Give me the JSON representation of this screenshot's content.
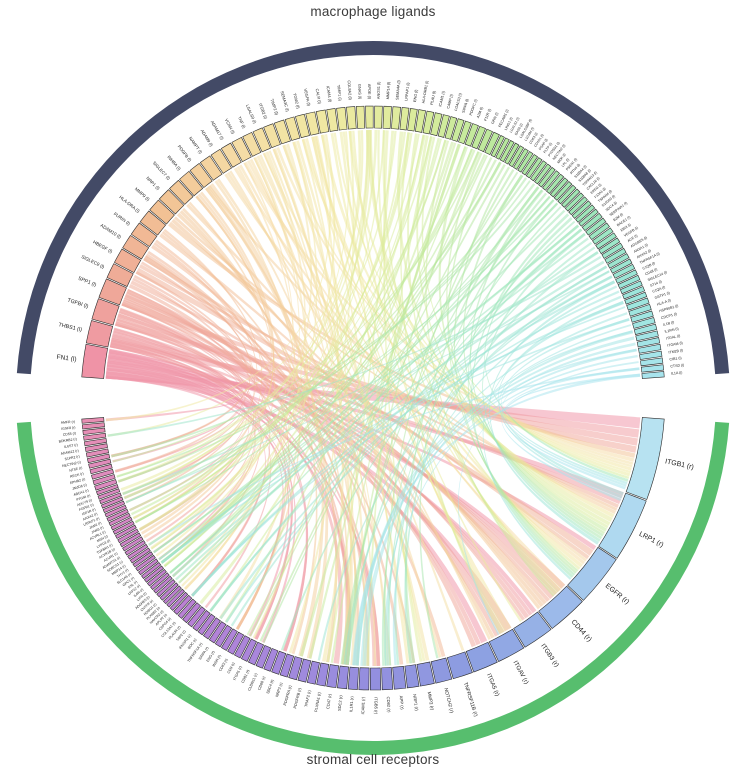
{
  "titles": {
    "top": "macrophage ligands",
    "bottom": "stromal cell receptors"
  },
  "chart_data": {
    "type": "chord",
    "layout_hint": "circos chord diagram; ligand sectors on upper semicircle, receptor sectors on lower semicircle; outer group bands; ribbons colored by source ligand",
    "groups": [
      {
        "name": "macrophage ligands",
        "band_color": "#434A66",
        "suffix": "(l)"
      },
      {
        "name": "stromal cell receptors",
        "band_color": "#57BE6E",
        "suffix": "(r)"
      }
    ],
    "ligand_labels": [
      "FN1 (l)",
      "THBS1 (l)",
      "TGFBI (l)",
      "SPP1 (l)",
      "SIGLEC9 (l)",
      "HBEGF (l)",
      "ADAM10 (l)",
      "FURIN (l)",
      "HLA-DRA (l)",
      "MMP9 (l)",
      "NRP1 (l)",
      "SIGLEC7 (l)",
      "INHBA (l)",
      "PDGFB (l)",
      "NAMPT (l)",
      "ADAM9 (l)",
      "ADAM17 (l)",
      "VCAN (l)",
      "TNF (l)",
      "LGALS9 (l)",
      "ITGB2 (l)",
      "TIMP2 (l)",
      "SEMA3C (l)",
      "TGM2 (l)",
      "VEGFA (l)",
      "CALR (l)",
      "ICAM4 (l)",
      "TIMP1 (l)",
      "COL8A2 (l)",
      "GNAS (l)",
      "APOE (l)",
      "ANOS1 (l)",
      "MMP14 (l)",
      "SEMA4A (l)",
      "LRPAP1 (l)",
      "ENG (l)",
      "HLA-DRB1 (l)",
      "PLAU (l)",
      "ICAM1 (l)",
      "CAMP (l)",
      "LGALS3 (l)",
      "SIRPA (l)",
      "PDGFC (l)",
      "A2M (l)",
      "F11R (l)",
      "GRN (l)",
      "PECAM1 (l)",
      "LRIG1 (l)",
      "LGALS1 (l)",
      "GAS6 (l)",
      "LGALS3BP (l)",
      "L1CAM (l)",
      "CD63 (l)",
      "CD151 (l)",
      "PSAP (l)",
      "PLTP (l)",
      "PTDSS1 (l)",
      "NECTIN2 (l)",
      "MDK (l)",
      "LPL (l)",
      "PSEN1 (l)",
      "RTN4 (l)",
      "S100A4 (l)",
      "S100A8 (l)",
      "TSPAN13 (l)",
      "CXCL16 (l)",
      "EREG (l)",
      "F13A1 (l)",
      "TSPAN4 (l)",
      "S100A9 (l)",
      "SDC4 (l)",
      "SERPINA1 (l)",
      "B2M (l)",
      "BACE1 (l)",
      "EBI3 (l)",
      "VEGFB (l)",
      "ACE (l)",
      "ADGRE5 (l)",
      "ANXA1 (l)",
      "ANXA2 (l)",
      "TNFRSF1A (l)",
      "C1QB (l)",
      "CD48 (l)",
      "SIGLEC14 (l)",
      "ST14 (l)",
      "C1QA (l)",
      "GSTP1 (l)",
      "HLA-A (l)",
      "HSP90B1 (l)",
      "CDCP1 (l)",
      "IL1B (l)",
      "IL1RN (l)",
      "ITGAL (l)",
      "ITGAM (l)",
      "ITM2B (l)",
      "CIB1 (l)",
      "CTSD (l)",
      "IL1A (l)"
    ],
    "ligand_weights": [
      4.5,
      3.2,
      3.0,
      2.8,
      2.2,
      2.2,
      2.1,
      2.0,
      2.0,
      1.9,
      1.9,
      1.8,
      1.8,
      1.7,
      1.7,
      1.6,
      1.6,
      1.6,
      1.5,
      1.5,
      1.5,
      1.5,
      1.4,
      1.4,
      1.4,
      1.4,
      1.3,
      1.3,
      1.3,
      1.2,
      1.2,
      1.2,
      1.2,
      1.2,
      1.1,
      1.1,
      1.1,
      1.1,
      1.1,
      1.0,
      1.0,
      1.0,
      1.0,
      1.0,
      1.0,
      1.0,
      1.0,
      0.72,
      0.72,
      0.72,
      0.72,
      0.72,
      0.72,
      0.72,
      0.72,
      0.72,
      0.72,
      0.72,
      0.72,
      0.72,
      0.72,
      0.72,
      0.72,
      0.72,
      0.72,
      0.72,
      0.72,
      0.72,
      0.72,
      0.72,
      0.8,
      0.8,
      0.8,
      0.8,
      0.8,
      0.8,
      0.8,
      0.8,
      0.8,
      0.8,
      0.8,
      0.8,
      0.8,
      0.8,
      0.8,
      0.8,
      0.9,
      0.9,
      0.9,
      0.9,
      0.9,
      0.9,
      0.9,
      0.9,
      0.9,
      0.9,
      0.9,
      0.9
    ],
    "receptor_labels": [
      "ITGB1 (r)",
      "LRP1 (r)",
      "EGFR (r)",
      "CD44 (r)",
      "ITGB3 (r)",
      "ITGAV (r)",
      "ITGA5 (r)",
      "TNFRSF11B (r)",
      "NOTCH2 (r)",
      "MMP2 (r)",
      "NRP1 (r)",
      "APP (r)",
      "CD82 (r)",
      "ITGB5 (r)",
      "ICAM1 (r)",
      "IL1R1 (r)",
      "SDC2 (r)",
      "CD47 (r)",
      "PLXNA1 (r)",
      "TRAF2 (r)",
      "PDGFRB (r)",
      "PDGFRA (r)",
      "NRP2 (r)",
      "SDC4 (r)",
      "CD68 (r)",
      "CLDN11 (r)",
      "CD81 (r)",
      "ITGA1 (r)",
      "CD9 (r)",
      "CD63 (r)",
      "INSR (r)",
      "ENG (r)",
      "SIRPA (r)",
      "TNFRSF1A (r)",
      "BOC (r)",
      "IFNGR1 (r)",
      "TAP2 (r)",
      "PLAUR (r)",
      "COL13A1 (r)",
      "CSPG4 (r)",
      "APLP2 (r)",
      "HAVCR2 (r)",
      "PLXNB2 (r)",
      "ROBO1 (r)",
      "CNTFR (r)",
      "ADGRE5 (r)",
      "LIFR (r)",
      "IL6R (r)",
      "LRP12 (r)",
      "AXL (r)",
      "GPC1 (r)",
      "SLC1A5 (r)",
      "THY1 (r)",
      "MMP14 (r)",
      "SORCS1 (r)",
      "ADAMTS1 (r)",
      "ACVR1 (r)",
      "ACVR1B (r)",
      "TGFBR1 (r)",
      "LYPD3 (r)",
      "MSN (r)",
      "ACVRL1 (r)",
      "JAM3 (r)",
      "JAM2 (r)",
      "LRPAP1 (r)",
      "ANXA2 (r)",
      "IGF1R (r)",
      "FGFR1 (r)",
      "ADCY9 (r)",
      "PTGIR (r)",
      "ABCA1 (r)",
      "JMJD6 (r)",
      "EPHB2 (r)",
      "RECK (r)",
      "NT5E (r)",
      "NECTIN2 (r)",
      "S1PR2 (r)",
      "ADAM12 (r)",
      "IL6ST (r)",
      "BDKRB2 (r)",
      "CD55 (r)",
      "IGSF8 (r)",
      "AMFR (r)"
    ],
    "receptor_weights": [
      14,
      11,
      9,
      7,
      5.5,
      5,
      4.5,
      3.6,
      3.0,
      2.6,
      2.2,
      2.2,
      2.0,
      2.0,
      1.9,
      1.8,
      1.8,
      1.8,
      1.7,
      1.6,
      1.6,
      1.6,
      1.5,
      1.5,
      1.4,
      1.4,
      1.4,
      1.3,
      1.3,
      1.3,
      1.2,
      1.2,
      1.2,
      1.2,
      1.1,
      1.1,
      1.1,
      1.1,
      1.0,
      1.0,
      0.8,
      0.8,
      0.8,
      0.8,
      0.8,
      0.8,
      0.8,
      0.8,
      0.8,
      0.8,
      0.8,
      0.8,
      0.8,
      0.8,
      0.8,
      0.8,
      0.8,
      0.8,
      0.8,
      0.8,
      0.8,
      0.8,
      0.8,
      0.8,
      0.8,
      0.8,
      0.8,
      0.8,
      0.8,
      0.8,
      0.95,
      0.95,
      0.95,
      0.95,
      0.95,
      0.95,
      0.95,
      0.95,
      0.95,
      0.95,
      0.95,
      0.95,
      0.95
    ],
    "ligand_color_stops": [
      "#EF8FA9",
      "#EFA898",
      "#F2C294",
      "#F5DCA6",
      "#F0E9A2",
      "#D9EC9C",
      "#B5E79E",
      "#9FE6B8",
      "#9CE5DA",
      "#A8E4EE"
    ],
    "receptor_color_stops": [
      "#BCE7F2",
      "#B0DBF0",
      "#9DBCEA",
      "#8C9FE1",
      "#938FDF",
      "#A687DC",
      "#BB80D3",
      "#D588C6",
      "#E98FB2"
    ],
    "chords": [
      [
        0,
        0,
        1.2
      ],
      [
        0,
        1,
        0.7
      ],
      [
        0,
        2,
        0.5
      ],
      [
        0,
        3,
        0.6
      ],
      [
        0,
        5,
        0.8
      ],
      [
        0,
        6,
        0.7
      ],
      [
        0,
        4,
        0.5
      ],
      [
        0,
        16,
        0.5
      ],
      [
        0,
        23,
        0.4
      ],
      [
        0,
        27,
        0.4
      ],
      [
        0,
        13,
        0.4
      ],
      [
        0,
        28,
        0.3
      ],
      [
        0,
        26,
        0.3
      ],
      [
        0,
        30,
        0.3
      ],
      [
        0,
        39,
        0.3
      ],
      [
        0,
        49,
        0.25
      ],
      [
        0,
        58,
        0.25
      ],
      [
        0,
        67,
        0.25
      ],
      [
        0,
        74,
        0.25
      ],
      [
        0,
        82,
        0.3
      ],
      [
        1,
        0,
        0.9
      ],
      [
        1,
        1,
        0.6
      ],
      [
        1,
        3,
        0.5
      ],
      [
        1,
        17,
        0.6
      ],
      [
        1,
        4,
        0.4
      ],
      [
        1,
        16,
        0.4
      ],
      [
        1,
        23,
        0.35
      ],
      [
        1,
        27,
        0.3
      ],
      [
        1,
        36,
        0.25
      ],
      [
        1,
        50,
        0.25
      ],
      [
        1,
        63,
        0.25
      ],
      [
        1,
        72,
        0.25
      ],
      [
        2,
        0,
        0.8
      ],
      [
        2,
        4,
        0.5
      ],
      [
        2,
        5,
        0.6
      ],
      [
        2,
        6,
        0.5
      ],
      [
        2,
        13,
        0.4
      ],
      [
        2,
        3,
        0.4
      ],
      [
        2,
        45,
        0.25
      ],
      [
        2,
        55,
        0.25
      ],
      [
        2,
        70,
        0.25
      ],
      [
        3,
        0,
        0.7
      ],
      [
        3,
        3,
        0.6
      ],
      [
        3,
        5,
        0.5
      ],
      [
        3,
        6,
        0.5
      ],
      [
        3,
        13,
        0.4
      ],
      [
        3,
        4,
        0.35
      ],
      [
        3,
        16,
        0.3
      ],
      [
        3,
        30,
        0.25
      ],
      [
        3,
        52,
        0.25
      ],
      [
        4,
        16,
        0.4
      ],
      [
        4,
        3,
        0.4
      ],
      [
        4,
        39,
        0.3
      ],
      [
        4,
        75,
        0.3
      ],
      [
        5,
        2,
        0.7
      ],
      [
        5,
        1,
        0.4
      ],
      [
        5,
        10,
        0.3
      ],
      [
        5,
        72,
        0.3
      ],
      [
        6,
        2,
        0.4
      ],
      [
        6,
        11,
        0.4
      ],
      [
        6,
        14,
        0.3
      ],
      [
        6,
        75,
        0.3
      ],
      [
        6,
        65,
        0.25
      ],
      [
        7,
        8,
        0.4
      ],
      [
        7,
        30,
        0.3
      ],
      [
        7,
        66,
        0.3
      ],
      [
        8,
        3,
        0.4
      ],
      [
        8,
        15,
        0.3
      ],
      [
        8,
        60,
        0.25
      ],
      [
        9,
        0,
        0.5
      ],
      [
        9,
        3,
        0.4
      ],
      [
        9,
        1,
        0.3
      ],
      [
        10,
        5,
        0.4
      ],
      [
        10,
        18,
        0.35
      ],
      [
        10,
        22,
        0.3
      ],
      [
        11,
        3,
        0.35
      ],
      [
        11,
        49,
        0.25
      ],
      [
        12,
        56,
        0.3
      ],
      [
        12,
        57,
        0.3
      ],
      [
        12,
        58,
        0.3
      ],
      [
        12,
        61,
        0.25
      ],
      [
        13,
        20,
        0.5
      ],
      [
        13,
        21,
        0.5
      ],
      [
        13,
        16,
        0.3
      ],
      [
        13,
        1,
        0.35
      ],
      [
        14,
        30,
        0.3
      ],
      [
        14,
        15,
        0.3
      ],
      [
        15,
        2,
        0.3
      ],
      [
        15,
        5,
        0.3
      ],
      [
        15,
        12,
        0.25
      ],
      [
        16,
        2,
        0.35
      ],
      [
        16,
        41,
        0.25
      ],
      [
        16,
        8,
        0.3
      ],
      [
        17,
        0,
        0.4
      ],
      [
        17,
        3,
        0.3
      ],
      [
        17,
        16,
        0.3
      ],
      [
        17,
        49,
        0.2
      ],
      [
        18,
        33,
        0.35
      ],
      [
        18,
        7,
        0.3
      ],
      [
        18,
        15,
        0.25
      ],
      [
        18,
        43,
        0.2
      ],
      [
        19,
        3,
        0.3
      ],
      [
        19,
        41,
        0.3
      ],
      [
        19,
        16,
        0.25
      ],
      [
        19,
        12,
        0.2
      ],
      [
        20,
        14,
        0.4
      ],
      [
        20,
        0,
        0.3
      ],
      [
        20,
        13,
        0.25
      ],
      [
        21,
        9,
        0.4
      ],
      [
        21,
        53,
        0.3
      ],
      [
        21,
        0,
        0.25
      ],
      [
        22,
        18,
        0.4
      ],
      [
        22,
        10,
        0.3
      ],
      [
        22,
        42,
        0.25
      ],
      [
        23,
        0,
        0.35
      ],
      [
        23,
        5,
        0.3
      ],
      [
        23,
        16,
        0.25
      ],
      [
        24,
        2,
        0.4
      ],
      [
        24,
        10,
        0.3
      ],
      [
        24,
        22,
        0.3
      ],
      [
        24,
        5,
        0.25
      ],
      [
        25,
        1,
        0.4
      ],
      [
        25,
        51,
        0.25
      ],
      [
        25,
        82,
        0.25
      ],
      [
        26,
        5,
        0.3
      ],
      [
        26,
        0,
        0.25
      ],
      [
        27,
        9,
        0.3
      ],
      [
        27,
        3,
        0.25
      ],
      [
        27,
        67,
        0.2
      ],
      [
        28,
        0,
        0.35
      ],
      [
        28,
        4,
        0.25
      ],
      [
        28,
        27,
        0.25
      ],
      [
        29,
        68,
        0.3
      ],
      [
        29,
        79,
        0.25
      ],
      [
        30,
        1,
        0.5
      ],
      [
        30,
        48,
        0.3
      ],
      [
        30,
        54,
        0.25
      ],
      [
        30,
        70,
        0.3
      ],
      [
        30,
        2,
        0.3
      ],
      [
        31,
        67,
        0.3
      ],
      [
        31,
        5,
        0.25
      ],
      [
        32,
        3,
        0.3
      ],
      [
        32,
        9,
        0.3
      ],
      [
        32,
        53,
        0.2
      ],
      [
        33,
        18,
        0.3
      ],
      [
        33,
        71,
        0.25
      ],
      [
        34,
        1,
        0.4
      ],
      [
        34,
        54,
        0.25
      ],
      [
        35,
        58,
        0.3
      ],
      [
        35,
        61,
        0.25
      ],
      [
        35,
        5,
        0.25
      ],
      [
        36,
        3,
        0.3
      ],
      [
        36,
        60,
        0.2
      ],
      [
        37,
        37,
        0.35
      ],
      [
        37,
        1,
        0.3
      ],
      [
        37,
        48,
        0.2
      ],
      [
        38,
        14,
        0.3
      ],
      [
        38,
        0,
        0.25
      ],
      [
        38,
        60,
        0.2
      ],
      [
        39,
        35,
        0.25
      ],
      [
        39,
        45,
        0.2
      ],
      [
        40,
        60,
        0.25
      ],
      [
        40,
        3,
        0.25
      ],
      [
        40,
        49,
        0.2
      ],
      [
        41,
        32,
        0.3
      ],
      [
        41,
        17,
        0.25
      ],
      [
        42,
        21,
        0.35
      ],
      [
        42,
        20,
        0.3
      ],
      [
        43,
        1,
        0.4
      ],
      [
        43,
        48,
        0.2
      ],
      [
        44,
        62,
        0.25
      ],
      [
        44,
        63,
        0.25
      ],
      [
        44,
        28,
        0.2
      ],
      [
        45,
        16,
        0.3
      ],
      [
        45,
        1,
        0.25
      ],
      [
        45,
        74,
        0.2
      ],
      [
        46,
        46,
        0.25
      ],
      [
        46,
        28,
        0.2
      ],
      [
        47,
        2,
        0.25
      ],
      [
        48,
        50,
        0.25
      ],
      [
        49,
        49,
        0.3
      ],
      [
        49,
        66,
        0.25
      ],
      [
        50,
        26,
        0.25
      ],
      [
        51,
        2,
        0.25
      ],
      [
        52,
        12,
        0.25
      ],
      [
        53,
        26,
        0.2
      ],
      [
        54,
        16,
        0.3
      ],
      [
        54,
        1,
        0.3
      ],
      [
        55,
        70,
        0.25
      ],
      [
        56,
        71,
        0.2
      ],
      [
        57,
        75,
        0.25
      ],
      [
        58,
        10,
        0.3
      ],
      [
        58,
        16,
        0.25
      ],
      [
        59,
        1,
        0.3
      ],
      [
        59,
        46,
        0.2
      ],
      [
        60,
        8,
        0.25
      ],
      [
        61,
        43,
        0.25
      ],
      [
        61,
        60,
        0.2
      ],
      [
        62,
        2,
        0.25
      ],
      [
        62,
        65,
        0.2
      ],
      [
        63,
        49,
        0.25
      ],
      [
        63,
        52,
        0.2
      ],
      [
        64,
        12,
        0.2
      ],
      [
        65,
        39,
        0.25
      ],
      [
        66,
        2,
        0.3
      ],
      [
        67,
        0,
        0.3
      ],
      [
        68,
        12,
        0.2
      ],
      [
        69,
        49,
        0.3
      ],
      [
        69,
        52,
        0.25
      ],
      [
        70,
        16,
        0.3
      ],
      [
        70,
        23,
        0.25
      ],
      [
        71,
        46,
        0.25
      ],
      [
        71,
        1,
        0.3
      ],
      [
        72,
        44,
        0.25
      ],
      [
        73,
        11,
        0.25
      ],
      [
        74,
        35,
        0.25
      ],
      [
        75,
        10,
        0.3
      ],
      [
        75,
        67,
        0.25
      ],
      [
        76,
        79,
        0.25
      ],
      [
        77,
        45,
        0.3
      ],
      [
        78,
        35,
        0.3
      ],
      [
        78,
        31,
        0.25
      ],
      [
        79,
        16,
        0.25
      ],
      [
        79,
        65,
        0.2
      ],
      [
        80,
        33,
        0.3
      ],
      [
        80,
        19,
        0.25
      ],
      [
        81,
        1,
        0.35
      ],
      [
        81,
        39,
        0.3
      ],
      [
        82,
        12,
        0.25
      ],
      [
        83,
        32,
        0.25
      ],
      [
        84,
        2,
        0.25
      ],
      [
        85,
        1,
        0.35
      ],
      [
        85,
        39,
        0.3
      ],
      [
        86,
        50,
        0.2
      ],
      [
        87,
        15,
        0.25
      ],
      [
        88,
        1,
        0.3
      ],
      [
        88,
        49,
        0.25
      ],
      [
        89,
        12,
        0.2
      ],
      [
        90,
        15,
        0.35
      ],
      [
        90,
        0,
        0.25
      ],
      [
        91,
        15,
        0.35
      ],
      [
        92,
        14,
        0.3
      ],
      [
        93,
        14,
        0.3
      ],
      [
        93,
        0,
        0.25
      ],
      [
        94,
        11,
        0.25
      ],
      [
        95,
        5,
        0.2
      ],
      [
        96,
        54,
        0.25
      ],
      [
        96,
        1,
        0.3
      ],
      [
        97,
        15,
        0.35
      ],
      [
        97,
        0,
        0.3
      ]
    ]
  }
}
